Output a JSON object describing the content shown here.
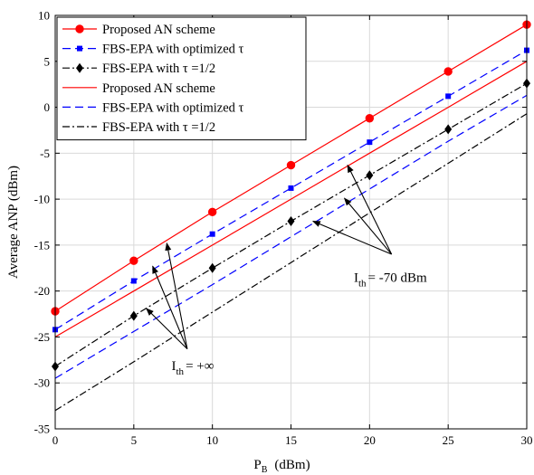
{
  "chart_data": {
    "type": "line",
    "xlabel": "P",
    "xlabel_sub": "B",
    "xlabel_unit": "(dBm)",
    "ylabel": "Average ANP (dBm)",
    "xlim": [
      0,
      30
    ],
    "ylim": [
      -35,
      10
    ],
    "xticks": [
      0,
      5,
      10,
      15,
      20,
      25,
      30
    ],
    "yticks": [
      -35,
      -30,
      -25,
      -20,
      -15,
      -10,
      -5,
      0,
      5,
      10
    ],
    "grid": true,
    "legend_position": "top-left",
    "x": [
      0,
      5,
      10,
      15,
      20,
      25,
      30
    ],
    "series": [
      {
        "name": "Proposed AN scheme",
        "values": [
          -22.2,
          -16.7,
          -11.4,
          -6.3,
          -1.2,
          3.9,
          9.0
        ],
        "color": "#ff0000",
        "dash": "solid",
        "marker": "circle"
      },
      {
        "name": "FBS-EPA with optimized τ",
        "values": [
          -24.2,
          -18.9,
          -13.8,
          -8.8,
          -3.8,
          1.2,
          6.2
        ],
        "color": "#0000ff",
        "dash": "dashed",
        "marker": "square"
      },
      {
        "name": "FBS-EPA with τ =1/2",
        "values": [
          -28.2,
          -22.7,
          -17.5,
          -12.4,
          -7.4,
          -2.4,
          2.6
        ],
        "color": "#000000",
        "dash": "dashdot",
        "marker": "diamond"
      },
      {
        "name": "Proposed AN scheme",
        "values": [
          -25.0,
          -20.0,
          -15.0,
          -10.0,
          -5.0,
          0.0,
          5.0
        ],
        "color": "#ff0000",
        "dash": "solid",
        "marker": "none"
      },
      {
        "name": "FBS-EPA with optimized τ",
        "values": [
          -29.5,
          -24.4,
          -19.3,
          -14.1,
          -8.9,
          -3.7,
          1.3
        ],
        "color": "#0000ff",
        "dash": "dashed",
        "marker": "none"
      },
      {
        "name": "FBS-EPA with τ =1/2",
        "values": [
          -33.0,
          -27.7,
          -22.3,
          -16.9,
          -11.5,
          -6.1,
          -0.7
        ],
        "color": "#000000",
        "dash": "dashdot",
        "marker": "none"
      }
    ],
    "annotations": [
      {
        "text": "I",
        "sub": "th",
        "rest": "= +∞",
        "pointer_groups": "upper three curves"
      },
      {
        "text": "I",
        "sub": "th",
        "rest": "= -70 dBm",
        "pointer_groups": "lower three curves"
      }
    ]
  }
}
